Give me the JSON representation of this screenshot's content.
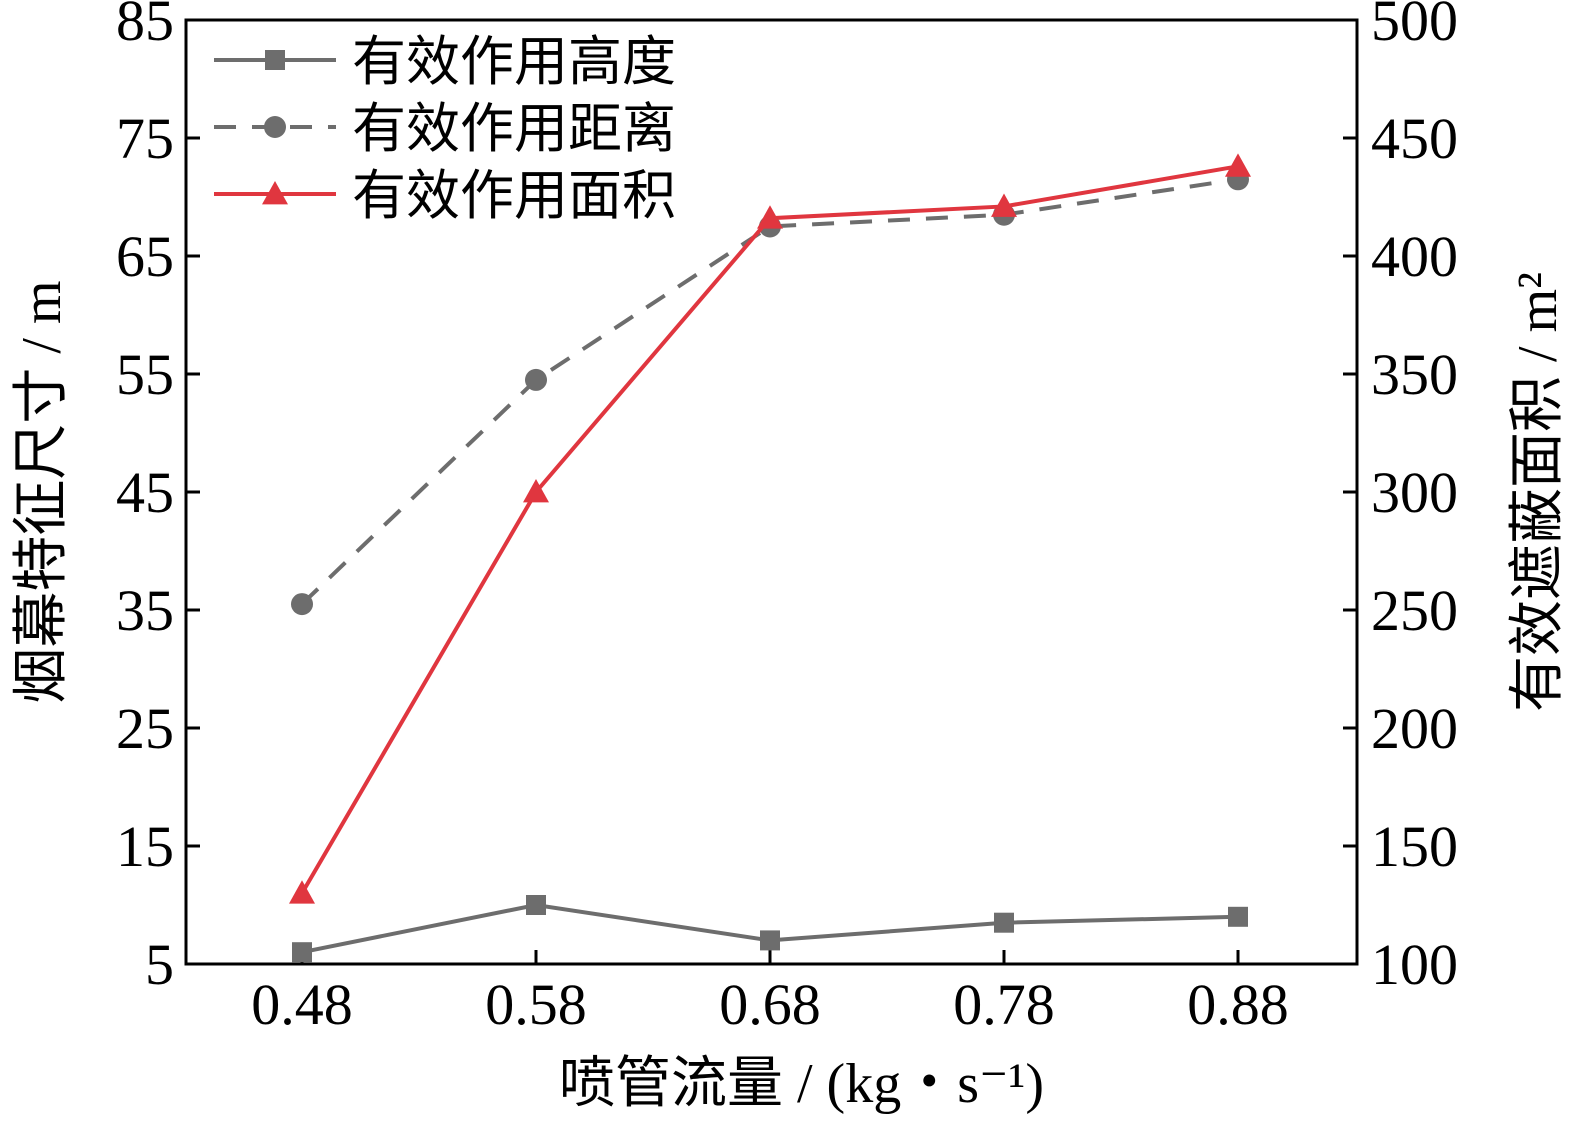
{
  "chart_data": {
    "type": "line",
    "categories": [
      "0.48",
      "0.58",
      "0.68",
      "0.78",
      "0.88"
    ],
    "xlabel": "喷管流量 / (kg・s⁻¹)",
    "ylabel_left": "烟幕特征尺寸 / m",
    "ylabel_right": "有效遮蔽面积 / m²",
    "ylim_left": [
      5,
      85
    ],
    "yticks_left": [
      5,
      15,
      25,
      35,
      45,
      55,
      65,
      75,
      85
    ],
    "ylim_right": [
      100,
      500
    ],
    "yticks_right": [
      100,
      150,
      200,
      250,
      300,
      350,
      400,
      450,
      500
    ],
    "grid": false,
    "legend_position": "top-left",
    "series": [
      {
        "name": "有效作用高度",
        "axis": "left",
        "values": [
          6.0,
          10.0,
          7.0,
          8.5,
          9.0
        ],
        "color": "#6d6d6d",
        "dash": "solid",
        "marker": "square"
      },
      {
        "name": "有效作用距离",
        "axis": "left",
        "values": [
          35.5,
          54.5,
          67.5,
          68.5,
          71.5
        ],
        "color": "#6d6d6d",
        "dash": "dashed",
        "marker": "circle"
      },
      {
        "name": "有效作用面积",
        "axis": "right",
        "values": [
          130,
          300,
          416,
          421,
          438
        ],
        "color": "#e0363f",
        "dash": "solid",
        "marker": "triangle"
      }
    ]
  }
}
